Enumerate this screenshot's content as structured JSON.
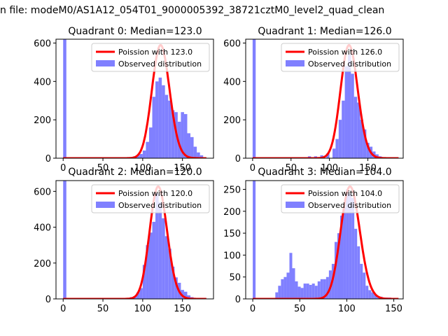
{
  "figure": {
    "suptitle": "n file: modeM0/AS1A12_054T01_9000005392_38721cztM0_level2_quad_clean"
  },
  "colors": {
    "histogram": "#8080ff",
    "poisson": "#ff0000"
  },
  "chart_data": [
    {
      "type": "bar",
      "title": "Quadrant 0: Median=123.0",
      "median": 123.0,
      "xlim": [
        -9,
        189
      ],
      "ylim": [
        0,
        620
      ],
      "xticks": [
        0,
        50,
        100,
        150
      ],
      "yticks": [
        0,
        200,
        400,
        600
      ],
      "bin_width": 4,
      "grid": false,
      "legend_position": "upper right",
      "series": [
        {
          "name": "Poission with 123.0",
          "type": "line",
          "lam": 123.0,
          "x_range": [
            0,
            180
          ]
        },
        {
          "name": "Observed distribution",
          "type": "histogram",
          "bins": [
            [
              0,
              620
            ],
            [
              84,
              5
            ],
            [
              88,
              10
            ],
            [
              92,
              15
            ],
            [
              96,
              22
            ],
            [
              100,
              40
            ],
            [
              104,
              85
            ],
            [
              108,
              160
            ],
            [
              112,
              320
            ],
            [
              116,
              400
            ],
            [
              120,
              420
            ],
            [
              124,
              380
            ],
            [
              128,
              330
            ],
            [
              132,
              300
            ],
            [
              136,
              250
            ],
            [
              140,
              240
            ],
            [
              144,
              190
            ],
            [
              148,
              240
            ],
            [
              152,
              230
            ],
            [
              156,
              130
            ],
            [
              160,
              110
            ],
            [
              164,
              60
            ],
            [
              168,
              30
            ],
            [
              172,
              15
            ],
            [
              176,
              5
            ]
          ]
        }
      ]
    },
    {
      "type": "bar",
      "title": "Quadrant 1: Median=126.0",
      "median": 126.0,
      "xlim": [
        -9,
        196
      ],
      "ylim": [
        0,
        620
      ],
      "xticks": [
        0,
        50,
        100,
        150
      ],
      "yticks": [
        0,
        200,
        400,
        600
      ],
      "bin_width": 4,
      "grid": false,
      "legend_position": "upper right",
      "series": [
        {
          "name": "Poission with 126.0",
          "type": "line",
          "lam": 126.0,
          "x_range": [
            0,
            190
          ]
        },
        {
          "name": "Observed distribution",
          "type": "histogram",
          "bins": [
            [
              0,
              620
            ],
            [
              40,
              5
            ],
            [
              60,
              3
            ],
            [
              72,
              10
            ],
            [
              80,
              10
            ],
            [
              88,
              15
            ],
            [
              96,
              25
            ],
            [
              104,
              50
            ],
            [
              108,
              100
            ],
            [
              112,
              200
            ],
            [
              116,
              300
            ],
            [
              120,
              480
            ],
            [
              124,
              540
            ],
            [
              128,
              440
            ],
            [
              132,
              320
            ],
            [
              136,
              290
            ],
            [
              140,
              200
            ],
            [
              144,
              150
            ],
            [
              148,
              80
            ],
            [
              152,
              60
            ],
            [
              156,
              35
            ],
            [
              160,
              20
            ],
            [
              164,
              10
            ],
            [
              168,
              5
            ]
          ]
        }
      ]
    },
    {
      "type": "bar",
      "title": "Quadrant 2: Median=120.0",
      "median": 120.0,
      "xlim": [
        -9,
        189
      ],
      "ylim": [
        0,
        660
      ],
      "xticks": [
        0,
        50,
        100,
        150
      ],
      "yticks": [
        0,
        200,
        400,
        600
      ],
      "bin_width": 4,
      "grid": false,
      "legend_position": "upper right",
      "series": [
        {
          "name": "Poission with 120.0",
          "type": "line",
          "lam": 120.0,
          "x_range": [
            0,
            180
          ]
        },
        {
          "name": "Observed distribution",
          "type": "histogram",
          "bins": [
            [
              0,
              660
            ],
            [
              76,
              3
            ],
            [
              84,
              10
            ],
            [
              88,
              15
            ],
            [
              92,
              35
            ],
            [
              96,
              60
            ],
            [
              100,
              190
            ],
            [
              104,
              300
            ],
            [
              108,
              370
            ],
            [
              112,
              430
            ],
            [
              116,
              590
            ],
            [
              120,
              540
            ],
            [
              124,
              450
            ],
            [
              128,
              350
            ],
            [
              132,
              280
            ],
            [
              136,
              180
            ],
            [
              140,
              120
            ],
            [
              144,
              90
            ],
            [
              148,
              50
            ],
            [
              152,
              40
            ],
            [
              156,
              20
            ],
            [
              160,
              10
            ],
            [
              164,
              5
            ]
          ]
        }
      ]
    },
    {
      "type": "bar",
      "title": "Quadrant 3: Median=104.0",
      "median": 104.0,
      "xlim": [
        -7.5,
        160
      ],
      "ylim": [
        0,
        270
      ],
      "xticks": [
        0,
        50,
        100,
        150
      ],
      "yticks": [
        0,
        50,
        100,
        150,
        200,
        250
      ],
      "bin_width": 3,
      "grid": false,
      "legend_position": "upper right",
      "series": [
        {
          "name": "Poission with 104.0",
          "type": "line",
          "lam": 104.0,
          "x_range": [
            0,
            155
          ]
        },
        {
          "name": "Observed distribution",
          "type": "histogram",
          "bins": [
            [
              0,
              270
            ],
            [
              24,
              15
            ],
            [
              27,
              30
            ],
            [
              30,
              45
            ],
            [
              33,
              50
            ],
            [
              36,
              60
            ],
            [
              39,
              105
            ],
            [
              42,
              70
            ],
            [
              45,
              40
            ],
            [
              48,
              28
            ],
            [
              51,
              25
            ],
            [
              54,
              35
            ],
            [
              57,
              35
            ],
            [
              60,
              32
            ],
            [
              63,
              35
            ],
            [
              66,
              30
            ],
            [
              69,
              40
            ],
            [
              72,
              45
            ],
            [
              75,
              45
            ],
            [
              78,
              50
            ],
            [
              81,
              65
            ],
            [
              84,
              80
            ],
            [
              87,
              130
            ],
            [
              90,
              150
            ],
            [
              93,
              190
            ],
            [
              96,
              210
            ],
            [
              99,
              250
            ],
            [
              102,
              240
            ],
            [
              105,
              230
            ],
            [
              108,
              160
            ],
            [
              111,
              120
            ],
            [
              114,
              80
            ],
            [
              117,
              60
            ],
            [
              120,
              30
            ],
            [
              123,
              20
            ],
            [
              126,
              15
            ],
            [
              129,
              10
            ],
            [
              132,
              5
            ],
            [
              135,
              5
            ],
            [
              138,
              3
            ],
            [
              141,
              3
            ],
            [
              144,
              3
            ]
          ]
        }
      ]
    }
  ]
}
